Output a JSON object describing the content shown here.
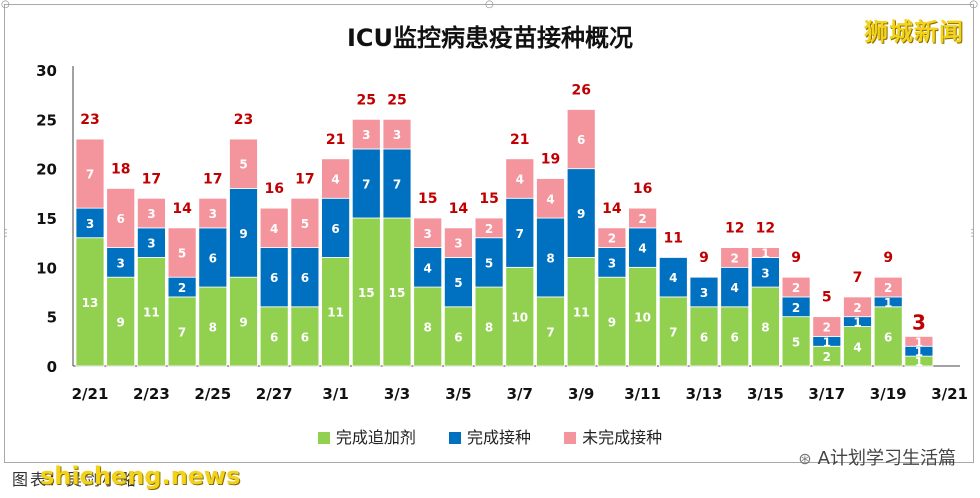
{
  "chart_data": {
    "type": "bar",
    "stacked": true,
    "title": "ICU监控病患疫苗接种概况",
    "categories": [
      "2/21",
      "2/22",
      "2/23",
      "2/24",
      "2/25",
      "2/26",
      "2/27",
      "2/28",
      "3/1",
      "3/2",
      "3/3",
      "3/4",
      "3/5",
      "3/6",
      "3/7",
      "3/8",
      "3/9",
      "3/10",
      "3/11",
      "3/12",
      "3/13",
      "3/14",
      "3/15",
      "3/16",
      "3/17",
      "3/18",
      "3/19",
      "3/20"
    ],
    "x_tick_labels": [
      "2/21",
      "2/23",
      "2/25",
      "2/27",
      "3/1",
      "3/3",
      "3/5",
      "3/7",
      "3/9",
      "3/11",
      "3/13",
      "3/15",
      "3/17",
      "3/19",
      "3/21"
    ],
    "series": [
      {
        "name": "完成追加剂",
        "color": "#92d050",
        "values": [
          13,
          9,
          11,
          7,
          8,
          9,
          6,
          6,
          11,
          15,
          15,
          8,
          6,
          8,
          10,
          7,
          11,
          9,
          10,
          7,
          6,
          6,
          8,
          5,
          2,
          4,
          6,
          1
        ]
      },
      {
        "name": "完成接种",
        "color": "#0070c0",
        "values": [
          3,
          3,
          3,
          2,
          6,
          9,
          6,
          6,
          6,
          7,
          7,
          4,
          5,
          5,
          7,
          8,
          9,
          3,
          4,
          4,
          3,
          4,
          3,
          2,
          1,
          1,
          1,
          1
        ]
      },
      {
        "name": "未完成接种",
        "color": "#f4949c",
        "values": [
          7,
          6,
          3,
          5,
          3,
          5,
          4,
          5,
          4,
          3,
          3,
          3,
          3,
          2,
          4,
          4,
          6,
          2,
          2,
          0,
          0,
          2,
          1,
          2,
          2,
          2,
          2,
          1
        ]
      }
    ],
    "totals": [
      23,
      18,
      17,
      14,
      17,
      23,
      16,
      17,
      21,
      25,
      25,
      15,
      14,
      15,
      21,
      19,
      26,
      14,
      16,
      11,
      9,
      12,
      12,
      9,
      5,
      7,
      9,
      3
    ],
    "ylim": [
      0,
      30
    ],
    "yticks": [
      0,
      5,
      10,
      15,
      20,
      25,
      30
    ],
    "grid": false,
    "legend": "bottom",
    "xlabel": "",
    "ylabel": ""
  },
  "brand": "狮城新闻",
  "caption": "图表：吴剑小路",
  "watermark": "shicheng.news",
  "wechat": "A计划学习生活篇",
  "colors": {
    "total_label": "#c00000",
    "segment_label": "#ffffff"
  }
}
